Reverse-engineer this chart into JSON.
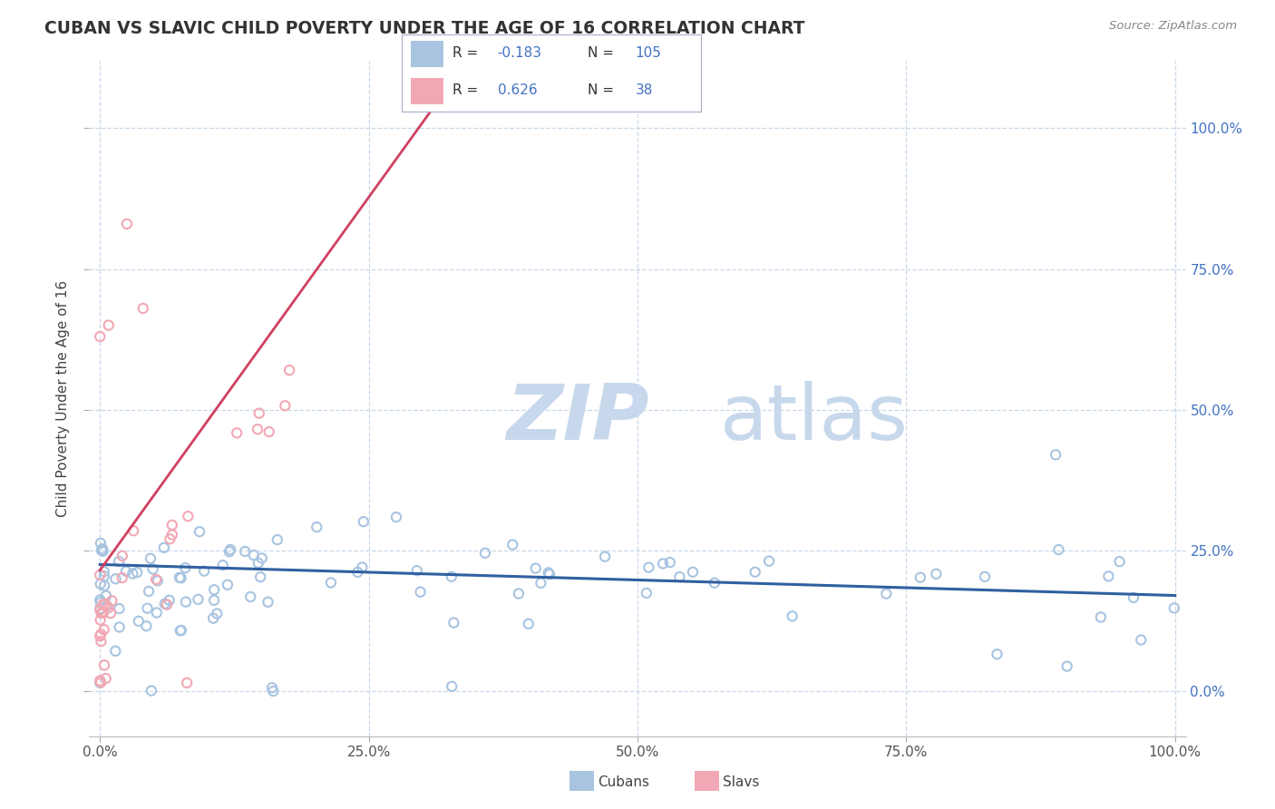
{
  "title": "CUBAN VS SLAVIC CHILD POVERTY UNDER THE AGE OF 16 CORRELATION CHART",
  "source_text": "Source: ZipAtlas.com",
  "ylabel": "Child Poverty Under the Age of 16",
  "xlim": [
    -0.01,
    1.01
  ],
  "ylim": [
    -0.08,
    1.12
  ],
  "ytick_values": [
    0,
    0.25,
    0.5,
    0.75,
    1.0
  ],
  "ytick_labels": [
    "0.0%",
    "25.0%",
    "50.0%",
    "75.0%",
    "100.0%"
  ],
  "xtick_values": [
    0,
    0.25,
    0.5,
    0.75,
    1.0
  ],
  "xtick_labels": [
    "0.0%",
    "25.0%",
    "50.0%",
    "75.0%",
    "100.0%"
  ],
  "cubans_R": -0.183,
  "cubans_N": 105,
  "slavs_R": 0.626,
  "slavs_N": 38,
  "cubans_color": "#a8c4e0",
  "slavs_color": "#f2a8b4",
  "cubans_line_color": "#3060a0",
  "slavs_line_color": "#d04060",
  "watermark_ZIP": "ZIP",
  "watermark_atlas": "atlas",
  "watermark_color_ZIP": "#c8d8ec",
  "watermark_color_atlas": "#c8d8ec",
  "background_color": "#ffffff",
  "title_color": "#333333",
  "title_fontsize": 13.5,
  "grid_color": "#c8d8e8",
  "right_tick_color": "#4472c4",
  "legend_value_color": "#4472c4"
}
